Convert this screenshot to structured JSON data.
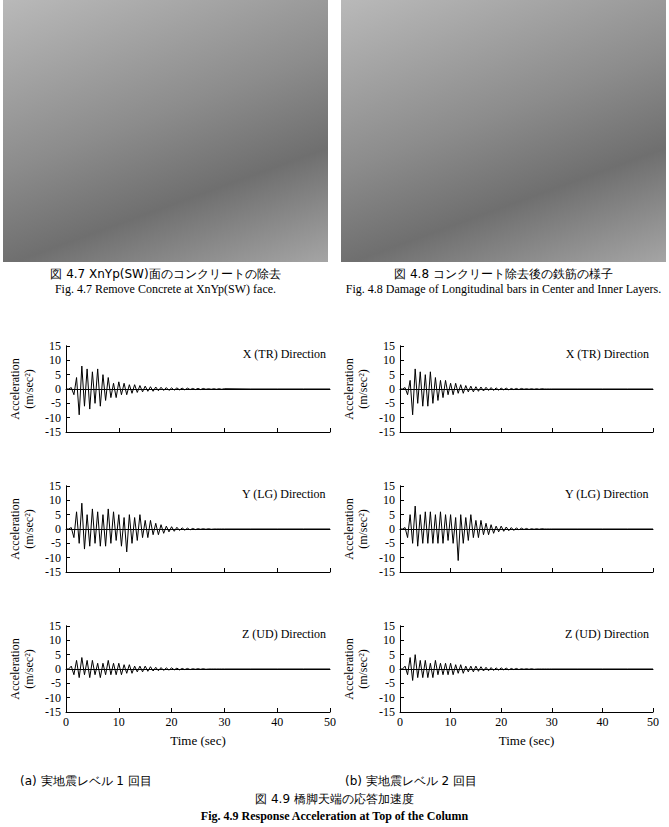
{
  "photos": [
    {
      "caption_ja": "図 4.7 XnYp(SW)面のコンクリートの除去",
      "caption_en": "Fig. 4.7 Remove Concrete at XnYp(SW) face."
    },
    {
      "caption_ja": "図 4.8 コンクリート除去後の鉄筋の様子",
      "caption_en": "Fig. 4.8 Damage of Longitudinal bars in Center and Inner Layers."
    }
  ],
  "chart_data": [
    {
      "type": "line",
      "title": "X (TR) Direction",
      "y_label": "Acceleration (m/sec²)",
      "color": "#000000",
      "tick_labels": "y",
      "xlim": [
        0,
        50
      ],
      "xticks": [
        0,
        10,
        20,
        30,
        40,
        50
      ],
      "ylim": [
        -15,
        15
      ],
      "yticks": [
        -15,
        -10,
        -5,
        0,
        5,
        10,
        15
      ],
      "x": [
        0,
        0.5,
        1,
        1.5,
        2,
        2.5,
        3,
        3.5,
        4,
        4.5,
        5,
        5.5,
        6,
        6.5,
        7,
        7.5,
        8,
        8.5,
        9,
        9.5,
        10,
        10.5,
        11,
        11.5,
        12,
        12.5,
        13,
        13.5,
        14,
        14.5,
        15,
        15.5,
        16,
        16.5,
        17,
        17.5,
        18,
        18.5,
        19,
        19.5,
        20,
        20.5,
        21,
        21.5,
        22,
        22.5,
        23,
        23.5,
        24,
        24.5,
        25,
        25.5,
        26,
        26.5,
        27,
        27.5,
        28,
        28.5,
        29,
        29.5,
        30,
        35,
        40,
        45,
        50
      ],
      "values": [
        0,
        0,
        0.5,
        -2,
        4,
        -9,
        8,
        -6,
        7,
        -7,
        6,
        -5,
        7,
        -6,
        5,
        -4,
        4,
        -3,
        2,
        -3,
        2.5,
        -2,
        2,
        -2,
        1.5,
        -1.5,
        1.5,
        -1.2,
        1.2,
        -1,
        1,
        -0.8,
        0.8,
        -0.8,
        0.7,
        -0.6,
        0.6,
        -0.5,
        0.5,
        -0.5,
        0.4,
        -0.4,
        0.4,
        -0.3,
        0.3,
        -0.3,
        0.3,
        -0.2,
        0.2,
        -0.2,
        0.2,
        -0.2,
        0.2,
        -0.1,
        0.1,
        -0.1,
        0.1,
        -0.1,
        0.1,
        -0.1,
        0.1,
        0,
        0,
        0,
        0
      ]
    },
    {
      "type": "line",
      "title": "Y (LG) Direction",
      "y_label": "Acceleration (m/sec²)",
      "color": "#000000",
      "tick_labels": "y",
      "xlim": [
        0,
        50
      ],
      "xticks": [
        0,
        10,
        20,
        30,
        40,
        50
      ],
      "ylim": [
        -15,
        15
      ],
      "yticks": [
        -15,
        -10,
        -5,
        0,
        5,
        10,
        15
      ],
      "x": [
        0,
        0.5,
        1,
        1.5,
        2,
        2.5,
        3,
        3.5,
        4,
        4.5,
        5,
        5.5,
        6,
        6.5,
        7,
        7.5,
        8,
        8.5,
        9,
        9.5,
        10,
        10.5,
        11,
        11.5,
        12,
        12.5,
        13,
        13.5,
        14,
        14.5,
        15,
        15.5,
        16,
        16.5,
        17,
        17.5,
        18,
        18.5,
        19,
        19.5,
        20,
        20.5,
        21,
        21.5,
        22,
        22.5,
        23,
        23.5,
        24,
        24.5,
        25,
        25.5,
        26,
        26.5,
        27,
        27.5,
        28,
        28.5,
        29,
        29.5,
        30,
        35,
        40,
        45,
        50
      ],
      "values": [
        0,
        0,
        0.5,
        -3,
        6,
        -5,
        9,
        -7,
        5,
        -6,
        7,
        -5,
        6,
        -6,
        5,
        -6,
        7,
        -5,
        6,
        -4,
        5,
        -6,
        4,
        -8,
        5,
        -5,
        4,
        -4,
        5,
        -3,
        3,
        -3,
        3,
        -2,
        2,
        -2,
        1.5,
        -1.5,
        1,
        -1,
        0.8,
        -0.8,
        0.6,
        -0.5,
        0.4,
        -0.4,
        0.3,
        -0.3,
        0.2,
        -0.2,
        0.1,
        -0.1,
        0.1,
        -0.1,
        0.1,
        -0.1,
        0,
        0,
        0,
        0,
        0,
        0,
        0,
        0,
        0
      ]
    },
    {
      "type": "line",
      "title": "Z (UD) Direction",
      "y_label": "Acceleration (m/sec²)",
      "x_label": "Time (sec)",
      "color": "#000000",
      "xlim": [
        0,
        50
      ],
      "xticks": [
        0,
        10,
        20,
        30,
        40,
        50
      ],
      "ylim": [
        -15,
        15
      ],
      "yticks": [
        -15,
        -10,
        -5,
        0,
        5,
        10,
        15
      ],
      "x": [
        0,
        0.5,
        1,
        1.5,
        2,
        2.5,
        3,
        3.5,
        4,
        4.5,
        5,
        5.5,
        6,
        6.5,
        7,
        7.5,
        8,
        8.5,
        9,
        9.5,
        10,
        10.5,
        11,
        11.5,
        12,
        12.5,
        13,
        13.5,
        14,
        14.5,
        15,
        15.5,
        16,
        16.5,
        17,
        17.5,
        18,
        18.5,
        19,
        19.5,
        20,
        20.5,
        21,
        21.5,
        22,
        22.5,
        23,
        23.5,
        24,
        24.5,
        25,
        25.5,
        26,
        26.5,
        27,
        27.5,
        28,
        28.5,
        29,
        29.5,
        30,
        35,
        40,
        45,
        50
      ],
      "values": [
        0,
        0,
        1,
        -2,
        3,
        -3,
        4,
        -2,
        3,
        -3,
        3,
        -2,
        2,
        -3,
        2,
        -2,
        3,
        -2,
        2,
        -2,
        2,
        -2,
        1.5,
        -1.5,
        1.5,
        -1.5,
        1,
        -1,
        1,
        -1,
        1,
        -0.8,
        0.8,
        -0.7,
        0.6,
        -0.6,
        0.5,
        -0.5,
        0.4,
        -0.4,
        0.4,
        -0.3,
        0.3,
        -0.3,
        0.2,
        -0.2,
        0.2,
        -0.2,
        0.1,
        -0.1,
        0.1,
        -0.1,
        0.1,
        -0.1,
        0,
        0,
        0,
        0,
        0,
        0,
        0,
        0,
        0,
        0,
        0
      ]
    },
    {
      "type": "line",
      "title": "X (TR) Direction",
      "y_label": "Acceleration (m/sec²)",
      "color": "#000000",
      "tick_labels": "y",
      "xlim": [
        0,
        50
      ],
      "xticks": [
        0,
        10,
        20,
        30,
        40,
        50
      ],
      "ylim": [
        -15,
        15
      ],
      "yticks": [
        -15,
        -10,
        -5,
        0,
        5,
        10,
        15
      ],
      "x": [
        0,
        0.5,
        1,
        1.5,
        2,
        2.5,
        3,
        3.5,
        4,
        4.5,
        5,
        5.5,
        6,
        6.5,
        7,
        7.5,
        8,
        8.5,
        9,
        9.5,
        10,
        10.5,
        11,
        11.5,
        12,
        12.5,
        13,
        13.5,
        14,
        14.5,
        15,
        15.5,
        16,
        16.5,
        17,
        17.5,
        18,
        18.5,
        19,
        19.5,
        20,
        20.5,
        21,
        21.5,
        22,
        22.5,
        23,
        23.5,
        24,
        24.5,
        25,
        25.5,
        26,
        26.5,
        27,
        27.5,
        28,
        28.5,
        29,
        29.5,
        30,
        35,
        40,
        45,
        50
      ],
      "values": [
        0,
        0,
        0.5,
        -2,
        3,
        -9,
        7,
        -5,
        6,
        -6,
        5,
        -6,
        6,
        -5,
        4,
        -4,
        3,
        -3,
        3,
        -2,
        2,
        -2,
        2,
        -1.5,
        1.5,
        -1.5,
        1.2,
        -1,
        1,
        -1,
        0.8,
        -0.8,
        0.7,
        -0.7,
        0.6,
        -0.5,
        0.5,
        -0.5,
        0.4,
        -0.4,
        0.3,
        -0.3,
        0.3,
        -0.3,
        0.2,
        -0.2,
        0.2,
        -0.2,
        0.2,
        -0.1,
        0.1,
        -0.1,
        0.1,
        -0.1,
        0.1,
        -0.1,
        0.1,
        0,
        0,
        0,
        0,
        0,
        0,
        0,
        0
      ]
    },
    {
      "type": "line",
      "title": "Y (LG) Direction",
      "y_label": "Acceleration (m/sec²)",
      "color": "#000000",
      "tick_labels": "y",
      "xlim": [
        0,
        50
      ],
      "xticks": [
        0,
        10,
        20,
        30,
        40,
        50
      ],
      "ylim": [
        -15,
        15
      ],
      "yticks": [
        -15,
        -10,
        -5,
        0,
        5,
        10,
        15
      ],
      "x": [
        0,
        0.5,
        1,
        1.5,
        2,
        2.5,
        3,
        3.5,
        4,
        4.5,
        5,
        5.5,
        6,
        6.5,
        7,
        7.5,
        8,
        8.5,
        9,
        9.5,
        10,
        10.5,
        11,
        11.5,
        12,
        12.5,
        13,
        13.5,
        14,
        14.5,
        15,
        15.5,
        16,
        16.5,
        17,
        17.5,
        18,
        18.5,
        19,
        19.5,
        20,
        20.5,
        21,
        21.5,
        22,
        22.5,
        23,
        23.5,
        24,
        24.5,
        25,
        25.5,
        26,
        26.5,
        27,
        27.5,
        28,
        28.5,
        29,
        29.5,
        30,
        35,
        40,
        45,
        50
      ],
      "values": [
        0,
        0,
        0.5,
        -3,
        5,
        -5,
        8,
        -6,
        5,
        -5,
        6,
        -5,
        6,
        -5,
        5,
        -5,
        6,
        -5,
        5,
        -4,
        5,
        -5,
        4,
        -11,
        5,
        -5,
        4,
        -4,
        5,
        -3,
        3,
        -3,
        3,
        -2,
        2,
        -2,
        1.5,
        -1.5,
        1,
        -1,
        1,
        -0.8,
        0.7,
        -0.6,
        0.5,
        -0.5,
        0.4,
        -0.3,
        0.3,
        -0.2,
        0.2,
        -0.2,
        0.1,
        -0.1,
        0.1,
        -0.1,
        0.1,
        0,
        0,
        0,
        0,
        0,
        0,
        0,
        0
      ]
    },
    {
      "type": "line",
      "title": "Z (UD) Direction",
      "y_label": "Acceleration (m/sec²)",
      "x_label": "Time (sec)",
      "color": "#000000",
      "xlim": [
        0,
        50
      ],
      "xticks": [
        0,
        10,
        20,
        30,
        40,
        50
      ],
      "ylim": [
        -15,
        15
      ],
      "yticks": [
        -15,
        -10,
        -5,
        0,
        5,
        10,
        15
      ],
      "x": [
        0,
        0.5,
        1,
        1.5,
        2,
        2.5,
        3,
        3.5,
        4,
        4.5,
        5,
        5.5,
        6,
        6.5,
        7,
        7.5,
        8,
        8.5,
        9,
        9.5,
        10,
        10.5,
        11,
        11.5,
        12,
        12.5,
        13,
        13.5,
        14,
        14.5,
        15,
        15.5,
        16,
        16.5,
        17,
        17.5,
        18,
        18.5,
        19,
        19.5,
        20,
        20.5,
        21,
        21.5,
        22,
        22.5,
        23,
        23.5,
        24,
        24.5,
        25,
        25.5,
        26,
        26.5,
        27,
        27.5,
        28,
        28.5,
        29,
        29.5,
        30,
        35,
        40,
        45,
        50
      ],
      "values": [
        0,
        0,
        1,
        -2,
        4,
        -4,
        5,
        -3,
        3,
        -3,
        3,
        -3,
        2,
        -3,
        3,
        -2,
        2,
        -2,
        2,
        -2,
        2,
        -2,
        1.5,
        -1.5,
        1.5,
        -1.5,
        1,
        -1,
        1,
        -1,
        1,
        -0.8,
        0.8,
        -0.7,
        0.6,
        -0.6,
        0.5,
        -0.5,
        0.4,
        -0.4,
        0.4,
        -0.3,
        0.3,
        -0.3,
        0.2,
        -0.2,
        0.2,
        -0.2,
        0.1,
        -0.1,
        0.1,
        -0.1,
        0.1,
        -0.1,
        0,
        0,
        0,
        0,
        0,
        0,
        0,
        0,
        0,
        0,
        0
      ]
    }
  ],
  "panel_captions": [
    "(a) 実地震レベル 1 回目",
    "(b) 実地震レベル 2 回目"
  ],
  "figure_caption": {
    "ja": "図 4.9 橋脚天端の応答加速度",
    "en": "Fig. 4.9 Response Acceleration at Top of the Column"
  }
}
